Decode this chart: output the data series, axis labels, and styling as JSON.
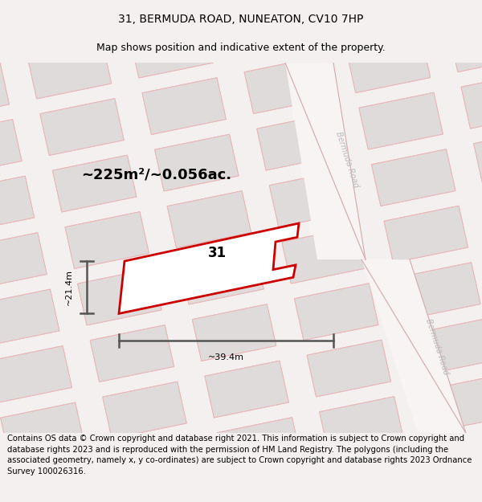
{
  "title": "31, BERMUDA ROAD, NUNEATON, CV10 7HP",
  "subtitle": "Map shows position and indicative extent of the property.",
  "footer": "Contains OS data © Crown copyright and database right 2021. This information is subject to Crown copyright and database rights 2023 and is reproduced with the permission of HM Land Registry. The polygons (including the associated geometry, namely x, y co-ordinates) are subject to Crown copyright and database rights 2023 Ordnance Survey 100026316.",
  "area_label": "~225m²/~0.056ac.",
  "width_label": "~39.4m",
  "height_label": "~21.4m",
  "number_label": "31",
  "fig_bg": "#f5f0f0",
  "map_bg": "#f8f4f4",
  "block_fill": "#e0dbdb",
  "block_edge": "#e8b8b8",
  "road_fill": "#f8f4f4",
  "highlight_color": "#cc0000",
  "dim_color": "#555555",
  "road_label_color": "#bbbbbb",
  "title_fontsize": 10,
  "subtitle_fontsize": 9,
  "footer_fontsize": 7.2,
  "area_fontsize": 13,
  "number_fontsize": 12,
  "dim_fontsize": 8,
  "road_fontsize": 7
}
